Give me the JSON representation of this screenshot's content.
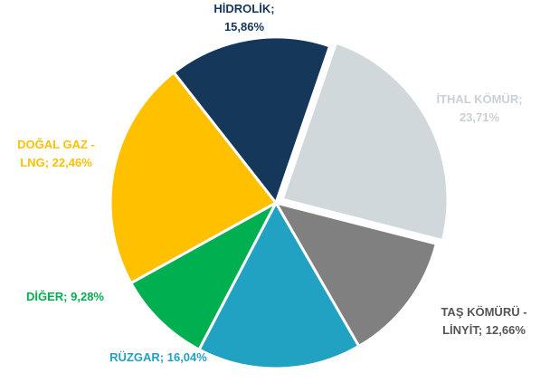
{
  "chart_data": {
    "type": "pie",
    "categories": [
      "İTHAL KÖMÜR;",
      "TAŞ KÖMÜRÜ - LİNYİT;",
      "RÜZGAR;",
      "DİĞER;",
      "DOĞAL GAZ - LNG;",
      "HİDROLİK;"
    ],
    "values": [
      23.71,
      12.66,
      16.04,
      9.28,
      22.46,
      15.86
    ],
    "value_labels": [
      "23,71%",
      "12,66%",
      "16,04%",
      "9,28%",
      "22,46%",
      "15,86%"
    ],
    "colors": [
      "#d0d8dc",
      "#808080",
      "#22a2c3",
      "#00b050",
      "#ffc000",
      "#15375a"
    ],
    "label_colors": [
      "#c9d1d6",
      "#555555",
      "#22a2c3",
      "#00b050",
      "#ffc000",
      "#15375a"
    ]
  }
}
